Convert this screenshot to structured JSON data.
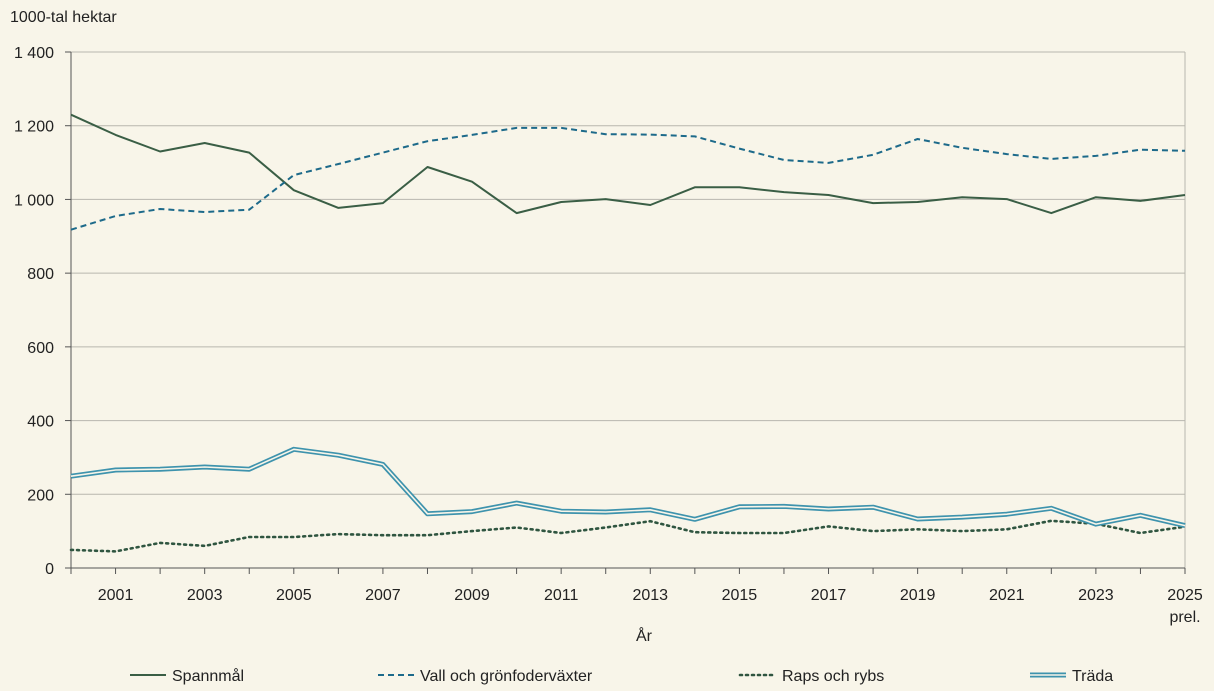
{
  "chart_data": {
    "type": "line",
    "ylabel": "1000-tal hektar",
    "xlabel": "År",
    "ylim": [
      0,
      1400
    ],
    "yticks": [
      0,
      200,
      400,
      600,
      800,
      1000,
      1200,
      1400
    ],
    "ytick_labels": [
      "0",
      "200",
      "400",
      "600",
      "800",
      "1 000",
      "1 200",
      "1 400"
    ],
    "x": [
      2000,
      2001,
      2002,
      2003,
      2004,
      2005,
      2006,
      2007,
      2008,
      2009,
      2010,
      2011,
      2012,
      2013,
      2014,
      2015,
      2016,
      2017,
      2018,
      2019,
      2020,
      2021,
      2022,
      2023,
      2024,
      2025
    ],
    "xtick_labels": [
      "2001",
      "2003",
      "2005",
      "2007",
      "2009",
      "2011",
      "2013",
      "2015",
      "2017",
      "2019",
      "2021",
      "2023",
      "2025"
    ],
    "xtick_note": "prel.",
    "grid": true,
    "legend_position": "bottom",
    "series": [
      {
        "name": "Spannmål",
        "style": "solid",
        "color": "#3a5e45",
        "values": [
          1230,
          1175,
          1130,
          1153,
          1127,
          1025,
          977,
          990,
          1088,
          1048,
          963,
          993,
          1001,
          985,
          1033,
          1033,
          1020,
          1012,
          990,
          993,
          1006,
          1001,
          963,
          1006,
          996,
          1012
        ]
      },
      {
        "name": "Vall och grönfoderväxter",
        "style": "dashed",
        "color": "#1d6a8a",
        "values": [
          918,
          955,
          974,
          966,
          972,
          1066,
          1096,
          1127,
          1158,
          1175,
          1194,
          1194,
          1177,
          1176,
          1171,
          1138,
          1107,
          1099,
          1121,
          1164,
          1140,
          1123,
          1110,
          1118,
          1135,
          1132
        ]
      },
      {
        "name": "Raps och rybs",
        "style": "dotted",
        "color": "#2f5540",
        "values": [
          49,
          45,
          68,
          60,
          84,
          84,
          92,
          89,
          89,
          100,
          110,
          95,
          110,
          127,
          97,
          95,
          95,
          113,
          100,
          105,
          100,
          105,
          128,
          120,
          95,
          112
        ]
      },
      {
        "name": "Träda",
        "style": "double",
        "color": "#3e93ad",
        "values": [
          249,
          266,
          268,
          274,
          268,
          322,
          306,
          281,
          147,
          153,
          176,
          154,
          152,
          158,
          132,
          166,
          167,
          160,
          165,
          133,
          138,
          146,
          162,
          119,
          143,
          115
        ]
      }
    ]
  }
}
